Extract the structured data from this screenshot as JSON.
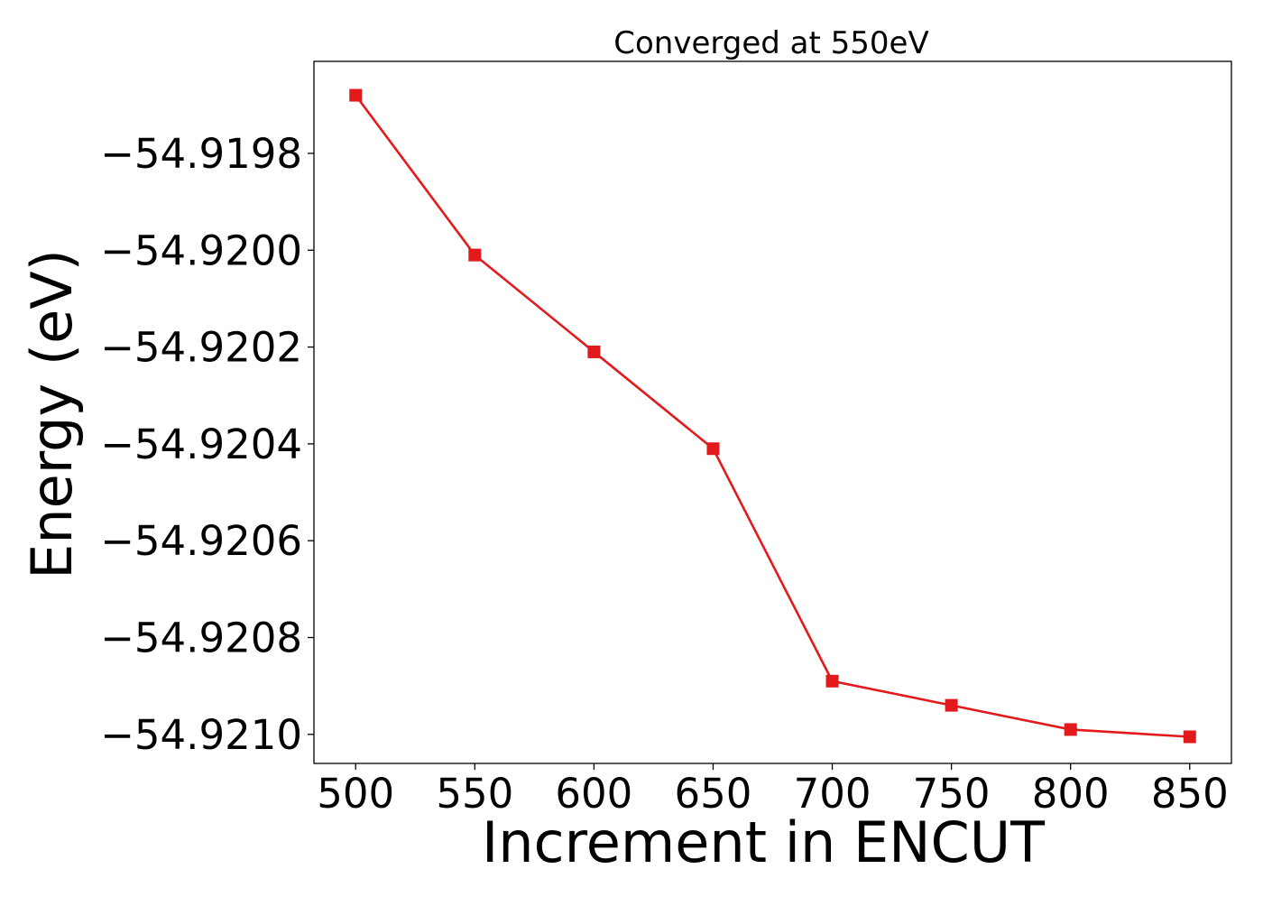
{
  "chart_data": {
    "type": "line",
    "title": "Converged at 550eV",
    "xlabel": "Increment in ENCUT",
    "ylabel": "Energy (eV)",
    "x": [
      500,
      550,
      600,
      650,
      700,
      750,
      800,
      850
    ],
    "series": [
      {
        "values": [
          -54.91968,
          -54.92001,
          -54.92021,
          -54.92041,
          -54.92089,
          -54.92094,
          -54.92099,
          -54.921005
        ],
        "color": "#e31a1c",
        "marker": "square"
      }
    ],
    "xlim": [
      482.5,
      867.5
    ],
    "ylim": [
      -54.92106,
      -54.91961
    ],
    "xticks": [
      500,
      550,
      600,
      650,
      700,
      750,
      800,
      850
    ],
    "xtick_labels": [
      "500",
      "550",
      "600",
      "650",
      "700",
      "750",
      "800",
      "850"
    ],
    "yticks": [
      -54.9198,
      -54.92,
      -54.9202,
      -54.9204,
      -54.9206,
      -54.9208,
      -54.921
    ],
    "ytick_labels": [
      "−54.9198",
      "−54.9200",
      "−54.9202",
      "−54.9204",
      "−54.9206",
      "−54.9208",
      "−54.9210"
    ],
    "grid": false,
    "legend": "none"
  }
}
